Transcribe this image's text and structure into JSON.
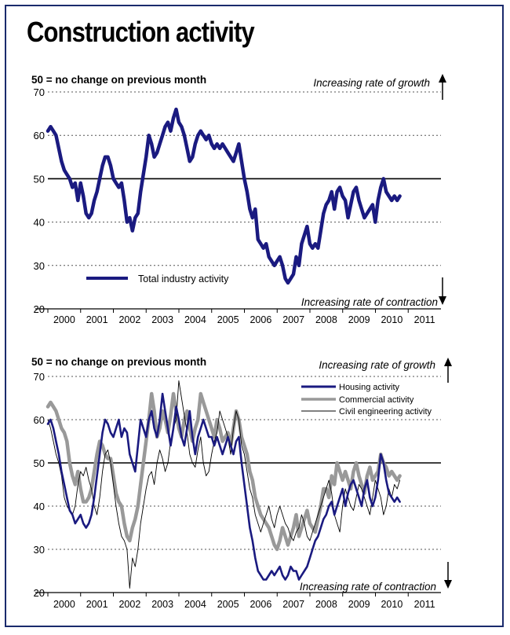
{
  "title": "Construction activity",
  "colors": {
    "frame": "#1a2a6c",
    "navy": "#1a1a80",
    "gray": "#999999",
    "black": "#000000"
  },
  "chart_data": [
    {
      "type": "line",
      "note": "50 = no change on previous month",
      "top_annotation": "Increasing rate of growth",
      "bottom_annotation": "Increasing rate of contraction",
      "ylim": [
        20,
        70
      ],
      "y_ticks": [
        20,
        30,
        40,
        50,
        60,
        70
      ],
      "xlim": [
        2000,
        2012
      ],
      "x_ticks": [
        "2000",
        "2001",
        "2002",
        "2003",
        "2004",
        "2005",
        "2006",
        "2007",
        "2008",
        "2009",
        "2010",
        "2011"
      ],
      "reference_line": 50,
      "grid": "dotted horizontal",
      "legend_position": "bottom-left",
      "series": [
        {
          "name": "Total industry activity",
          "color": "#1a1a80",
          "style": "thick",
          "x_start": 2000.0,
          "x_step": 0.0833,
          "values": [
            61,
            62,
            61,
            60,
            57,
            54,
            52,
            51,
            50,
            48,
            49,
            45,
            49,
            46,
            42,
            41,
            42,
            45,
            47,
            50,
            53,
            55,
            55,
            53,
            50,
            49,
            48,
            49,
            45,
            40,
            41,
            38,
            41,
            42,
            47,
            51,
            55,
            60,
            58,
            55,
            56,
            58,
            60,
            62,
            63,
            61,
            64,
            66,
            63,
            62,
            60,
            57,
            54,
            55,
            58,
            60,
            61,
            60,
            59,
            60,
            58,
            57,
            58,
            57,
            58,
            57,
            56,
            55,
            54,
            56,
            58,
            54,
            50,
            47,
            43,
            41,
            43,
            36,
            35,
            34,
            35,
            32,
            31,
            30,
            31,
            32,
            30,
            27,
            26,
            27,
            28,
            32,
            30,
            35,
            37,
            39,
            35,
            34,
            35,
            34,
            38,
            42,
            44,
            45,
            47,
            43,
            47,
            48,
            46,
            45,
            41,
            44,
            47,
            48,
            45,
            43,
            41,
            42,
            43,
            44,
            40,
            45,
            48,
            50,
            47,
            46,
            45,
            46,
            45,
            46
          ]
        }
      ]
    },
    {
      "type": "line",
      "note": "50 = no change on previous month",
      "top_annotation": "Increasing rate of growth",
      "bottom_annotation": "Increasing rate of contraction",
      "ylim": [
        20,
        70
      ],
      "y_ticks": [
        20,
        30,
        40,
        50,
        60,
        70
      ],
      "xlim": [
        2000,
        2012
      ],
      "x_ticks": [
        "2000",
        "2001",
        "2002",
        "2003",
        "2004",
        "2005",
        "2006",
        "2007",
        "2008",
        "2009",
        "2010",
        "2011"
      ],
      "reference_line": 50,
      "grid": "dotted horizontal",
      "legend_position": "top-right",
      "series": [
        {
          "name": "Housing activity",
          "color": "#1a1a80",
          "style": "medium",
          "x_start": 2000.0,
          "x_step": 0.0833,
          "values": [
            59,
            60,
            58,
            55,
            52,
            48,
            45,
            42,
            39,
            38,
            36,
            37,
            38,
            36,
            35,
            36,
            38,
            42,
            47,
            52,
            57,
            60,
            59,
            57,
            56,
            58,
            60,
            56,
            58,
            57,
            52,
            50,
            48,
            54,
            60,
            58,
            56,
            60,
            62,
            58,
            56,
            60,
            66,
            62,
            58,
            54,
            58,
            63,
            60,
            56,
            54,
            58,
            62,
            56,
            52,
            56,
            58,
            60,
            58,
            56,
            56,
            54,
            56,
            54,
            52,
            54,
            56,
            54,
            52,
            55,
            56,
            50,
            45,
            40,
            35,
            32,
            28,
            25,
            24,
            23,
            23,
            24,
            25,
            24,
            25,
            26,
            24,
            23,
            24,
            26,
            25,
            25,
            23,
            24,
            25,
            26,
            28,
            30,
            32,
            33,
            35,
            37,
            38,
            40,
            41,
            38,
            40,
            42,
            44,
            40,
            43,
            45,
            46,
            44,
            42,
            40,
            44,
            46,
            42,
            40,
            42,
            46,
            52,
            50,
            46,
            43,
            42,
            41,
            42,
            41
          ]
        },
        {
          "name": "Commercial activity",
          "color": "#999999",
          "style": "thick",
          "x_start": 2000.0,
          "x_step": 0.0833,
          "values": [
            63,
            64,
            63,
            62,
            60,
            58,
            57,
            55,
            50,
            47,
            45,
            48,
            44,
            41,
            41,
            42,
            44,
            48,
            52,
            55,
            54,
            52,
            51,
            51,
            47,
            43,
            41,
            40,
            36,
            33,
            32,
            35,
            37,
            40,
            45,
            50,
            55,
            60,
            66,
            62,
            56,
            58,
            62,
            60,
            57,
            61,
            66,
            62,
            58,
            56,
            60,
            62,
            58,
            55,
            58,
            60,
            66,
            64,
            62,
            60,
            58,
            56,
            60,
            58,
            55,
            56,
            57,
            54,
            58,
            62,
            60,
            56,
            54,
            52,
            48,
            46,
            42,
            40,
            38,
            37,
            36,
            35,
            33,
            31,
            30,
            32,
            35,
            33,
            31,
            33,
            35,
            38,
            33,
            35,
            37,
            39,
            36,
            35,
            34,
            37,
            40,
            44,
            44,
            42,
            47,
            45,
            50,
            48,
            46,
            48,
            46,
            44,
            48,
            50,
            47,
            45,
            43,
            47,
            49,
            46,
            47,
            48,
            52,
            50,
            49,
            47,
            48,
            47,
            46,
            47
          ]
        },
        {
          "name": "Civil engineering activity",
          "color": "#000000",
          "style": "thin",
          "x_start": 2000.0,
          "x_step": 0.0833,
          "values": [
            60,
            58,
            55,
            52,
            50,
            47,
            42,
            40,
            39,
            38,
            40,
            45,
            48,
            47,
            49,
            46,
            44,
            40,
            38,
            42,
            48,
            52,
            53,
            50,
            45,
            40,
            36,
            33,
            32,
            30,
            21,
            28,
            26,
            30,
            36,
            40,
            44,
            47,
            48,
            45,
            50,
            53,
            51,
            48,
            50,
            55,
            58,
            60,
            69,
            65,
            61,
            57,
            52,
            50,
            49,
            53,
            56,
            50,
            47,
            48,
            52,
            55,
            57,
            62,
            60,
            58,
            56,
            52,
            58,
            62,
            60,
            54,
            52,
            48,
            44,
            42,
            38,
            36,
            34,
            36,
            38,
            40,
            37,
            35,
            38,
            40,
            38,
            36,
            35,
            33,
            32,
            34,
            35,
            38,
            36,
            33,
            32,
            34,
            36,
            38,
            40,
            42,
            44,
            46,
            43,
            38,
            36,
            34,
            40,
            44,
            42,
            40,
            39,
            42,
            45,
            44,
            42,
            40,
            38,
            42,
            46,
            44,
            42,
            38,
            40,
            44,
            42,
            45,
            44,
            46
          ]
        }
      ]
    }
  ]
}
